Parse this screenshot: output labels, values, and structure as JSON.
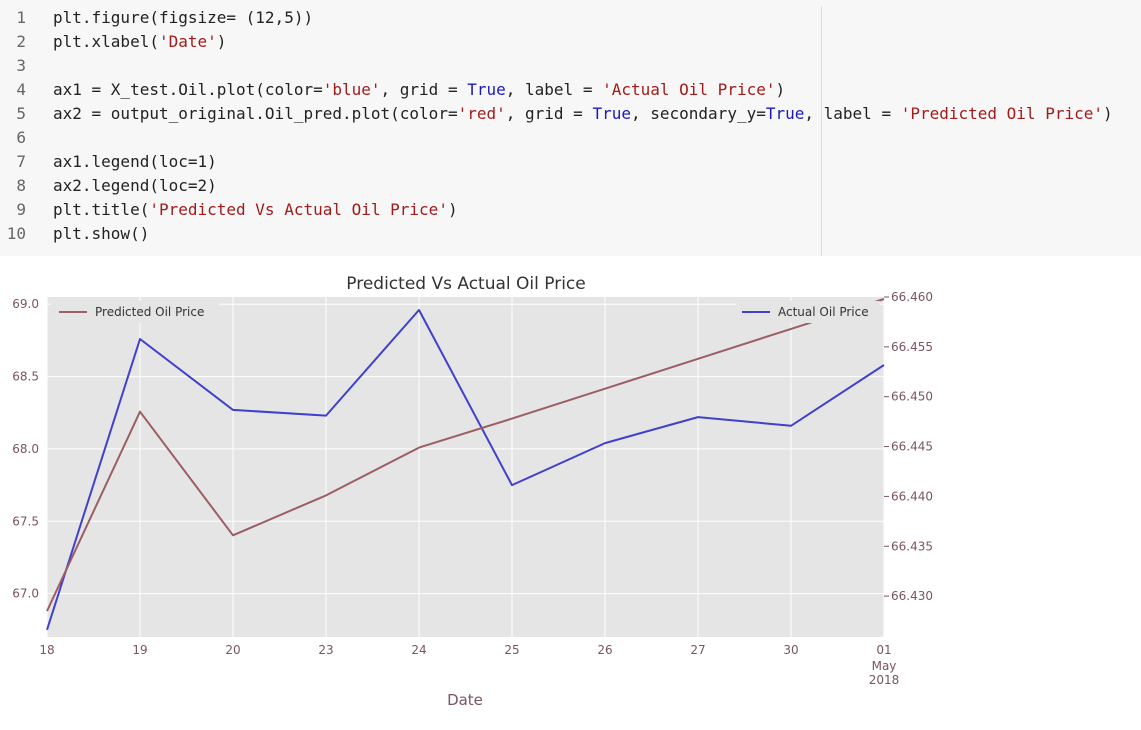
{
  "code": {
    "lines": [
      {
        "no": "1",
        "segments": [
          {
            "t": "plt.figure(figsize= (12,5))",
            "k": "plain"
          }
        ]
      },
      {
        "no": "2",
        "segments": [
          {
            "t": "plt.xlabel(",
            "k": "plain"
          },
          {
            "t": "'Date'",
            "k": "str"
          },
          {
            "t": ")",
            "k": "plain"
          }
        ]
      },
      {
        "no": "3",
        "segments": []
      },
      {
        "no": "4",
        "segments": [
          {
            "t": "ax1 = X_test.Oil.plot(color=",
            "k": "plain"
          },
          {
            "t": "'blue'",
            "k": "str"
          },
          {
            "t": ", grid = ",
            "k": "plain"
          },
          {
            "t": "True",
            "k": "kw"
          },
          {
            "t": ", label = ",
            "k": "plain"
          },
          {
            "t": "'Actual Oil Price'",
            "k": "str"
          },
          {
            "t": ")",
            "k": "plain"
          }
        ]
      },
      {
        "no": "5",
        "segments": [
          {
            "t": "ax2 = output_original.Oil_pred.plot(color=",
            "k": "plain"
          },
          {
            "t": "'red'",
            "k": "str"
          },
          {
            "t": ", grid = ",
            "k": "plain"
          },
          {
            "t": "True",
            "k": "kw"
          },
          {
            "t": ", secondary_y=",
            "k": "plain"
          },
          {
            "t": "True",
            "k": "kw"
          },
          {
            "t": ", label = ",
            "k": "plain"
          },
          {
            "t": "'Predicted Oil Price'",
            "k": "str"
          },
          {
            "t": ")",
            "k": "plain"
          }
        ]
      },
      {
        "no": "6",
        "segments": []
      },
      {
        "no": "7",
        "segments": [
          {
            "t": "ax1.legend(loc=1)",
            "k": "plain"
          }
        ]
      },
      {
        "no": "8",
        "segments": [
          {
            "t": "ax2.legend(loc=2)",
            "k": "plain"
          }
        ]
      },
      {
        "no": "9",
        "segments": [
          {
            "t": "plt.title(",
            "k": "plain"
          },
          {
            "t": "'Predicted Vs Actual Oil Price'",
            "k": "str"
          },
          {
            "t": ")",
            "k": "plain"
          }
        ]
      },
      {
        "no": "10",
        "segments": [
          {
            "t": "plt.show()",
            "k": "plain"
          }
        ]
      }
    ]
  },
  "colors": {
    "plot_bg": "#e5e5e5",
    "grid": "#ffffff",
    "tick_text": "#7a5560",
    "title_text": "#333333",
    "keyword": "#1a1ab8",
    "string": "#a11b1b",
    "actual_line": "#4040cc",
    "predicted_line": "#9b5e63"
  },
  "chart_data": {
    "type": "line",
    "title": "Predicted Vs Actual Oil Price",
    "xlabel": "Date",
    "x_ticks": [
      "18",
      "19",
      "20",
      "23",
      "24",
      "25",
      "26",
      "27",
      "30",
      "01"
    ],
    "x_tick_sub": {
      "index": 9,
      "lines": [
        "May",
        "2018"
      ]
    },
    "grid": true,
    "series": [
      {
        "name": "Actual Oil Price",
        "axis": "left",
        "color": "blue",
        "values": [
          66.75,
          68.76,
          68.27,
          68.23,
          68.96,
          67.75,
          68.04,
          68.22,
          68.16,
          68.58
        ]
      },
      {
        "name": "Predicted Oil Price",
        "axis": "right",
        "color": "red",
        "values": [
          66.4285,
          66.4485,
          66.4361,
          66.4401,
          66.4449,
          66.4478,
          66.4508,
          66.4538,
          66.4568,
          66.4598
        ]
      }
    ],
    "y_left": {
      "ylim": [
        66.7,
        69.05
      ],
      "ticks": [
        67.0,
        67.5,
        68.0,
        68.5,
        69.0
      ],
      "labels": [
        "67.0",
        "67.5",
        "68.0",
        "68.5",
        "69.0"
      ]
    },
    "y_right": {
      "ylim": [
        66.4259,
        66.46
      ],
      "ticks": [
        66.43,
        66.435,
        66.44,
        66.445,
        66.45,
        66.455,
        66.46
      ],
      "labels": [
        "66.430",
        "66.435",
        "66.440",
        "66.445",
        "66.450",
        "66.455",
        "66.460"
      ]
    },
    "legends": [
      {
        "label": "Predicted Oil Price",
        "placement": "upper-left",
        "series": 1
      },
      {
        "label": "Actual Oil Price",
        "placement": "upper-right",
        "series": 0
      }
    ]
  }
}
